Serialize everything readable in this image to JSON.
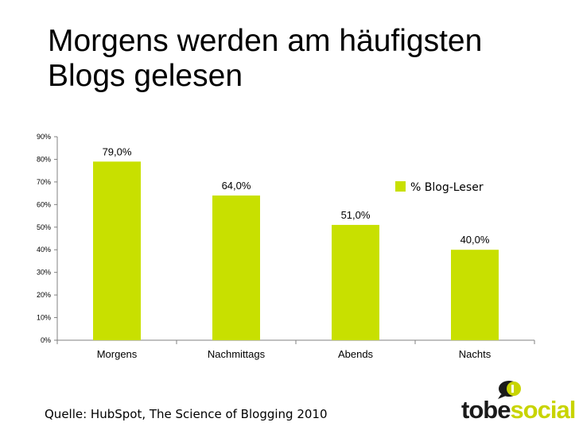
{
  "slide": {
    "title_line1": "Morgens werden am häufigsten",
    "title_line2": "Blogs gelesen",
    "source": "Quelle: HubSpot, The Science of Blogging 2010"
  },
  "logo": {
    "text_part1": "tobe",
    "text_part2": "social",
    "mark_icon": "speech-bubble-icon",
    "colors": {
      "dark": "#1a1a1a",
      "accent": "#c8d400"
    }
  },
  "chart_data": {
    "type": "bar",
    "categories": [
      "Morgens",
      "Nachmittags",
      "Abends",
      "Nachts"
    ],
    "series": [
      {
        "name": "% Blog-Leser",
        "values": [
          79.0,
          64.0,
          51.0,
          40.0
        ],
        "color": "#c8e000"
      }
    ],
    "data_labels": [
      "79,0%",
      "64,0%",
      "51,0%",
      "40,0%"
    ],
    "ylim": [
      0,
      90
    ],
    "yticks": [
      "0%",
      "10%",
      "20%",
      "30%",
      "40%",
      "50%",
      "60%",
      "70%",
      "80%",
      "90%"
    ],
    "ytick_values": [
      0,
      10,
      20,
      30,
      40,
      50,
      60,
      70,
      80,
      90
    ],
    "legend_position": "top-right",
    "grid": false
  }
}
